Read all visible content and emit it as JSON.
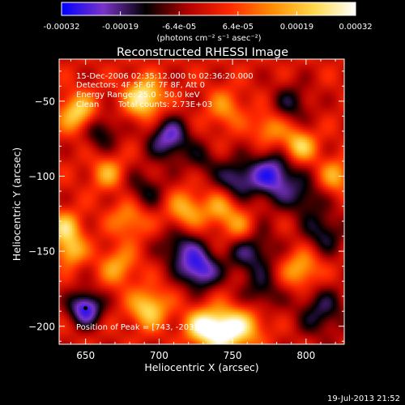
{
  "chart_data": {
    "type": "heatmap",
    "title": "Reconstructed RHESSI Image",
    "xlabel": "Heliocentric X (arcsec)",
    "ylabel": "Heliocentric Y (arcsec)",
    "xlim": [
      632,
      826
    ],
    "ylim": [
      -212,
      -22
    ],
    "x_ticks": [
      {
        "value": 650,
        "label": "650"
      },
      {
        "value": 700,
        "label": "700"
      },
      {
        "value": 750,
        "label": "750"
      },
      {
        "value": 800,
        "label": "800"
      }
    ],
    "y_ticks": [
      {
        "value": -50,
        "label": "−50"
      },
      {
        "value": -100,
        "label": "−100"
      },
      {
        "value": -150,
        "label": "−150"
      },
      {
        "value": -200,
        "label": "−200"
      }
    ],
    "colorbar": {
      "range": [
        -0.00032,
        0.00032
      ],
      "tick_labels": [
        "-0.00032",
        "-0.00019",
        "-6.4e-05",
        "6.4e-05",
        "0.00019",
        "0.00032"
      ],
      "unit_label": "(photons cm⁻² s⁻¹ asec⁻²)",
      "colors": [
        "#0000ff",
        "#7a33c8",
        "#000000",
        "#b00000",
        "#ff2800",
        "#ff8c00",
        "#ffd84a",
        "#ffffff"
      ]
    },
    "annotations": {
      "time_range": "15-Dec-2006 02:35:12.000 to 02:36:20.000",
      "detectors": "Detectors: 4F 5F 6F 7F 8F, Att 0",
      "energy": "Energy Range: 25.0 - 50.0 keV",
      "method": "Clean",
      "counts": "Total counts: 2.73E+03",
      "peak": "Position of Peak = [743, -203]"
    },
    "blobs": [
      {
        "x": 650,
        "y": -188,
        "a": -1.1,
        "s": 8
      },
      {
        "x": 707,
        "y": -75,
        "a": -0.9,
        "s": 10
      },
      {
        "x": 778,
        "y": -100,
        "a": -1.0,
        "s": 12
      },
      {
        "x": 752,
        "y": -102,
        "a": -0.7,
        "s": 9
      },
      {
        "x": 728,
        "y": -163,
        "a": -1.0,
        "s": 9
      },
      {
        "x": 715,
        "y": -148,
        "a": -0.7,
        "s": 10
      },
      {
        "x": 762,
        "y": -150,
        "a": -0.7,
        "s": 12
      },
      {
        "x": 812,
        "y": -138,
        "a": -0.6,
        "s": 10
      },
      {
        "x": 690,
        "y": -110,
        "a": -0.5,
        "s": 10
      },
      {
        "x": 810,
        "y": -190,
        "a": -0.6,
        "s": 12
      },
      {
        "x": 660,
        "y": -70,
        "a": -0.6,
        "s": 9
      },
      {
        "x": 790,
        "y": -52,
        "a": -0.5,
        "s": 10
      },
      {
        "x": 800,
        "y": -115,
        "a": -0.5,
        "s": 9
      },
      {
        "x": 730,
        "y": -90,
        "a": -0.4,
        "s": 8
      },
      {
        "x": 770,
        "y": -178,
        "a": -0.5,
        "s": 9
      },
      {
        "x": 743,
        "y": -203,
        "a": 1.25,
        "s": 10
      },
      {
        "x": 728,
        "y": -200,
        "a": 0.8,
        "s": 8
      },
      {
        "x": 690,
        "y": -48,
        "a": 1.1,
        "s": 9
      },
      {
        "x": 645,
        "y": -58,
        "a": 0.9,
        "s": 9
      },
      {
        "x": 636,
        "y": -135,
        "a": 0.8,
        "s": 8
      },
      {
        "x": 640,
        "y": -150,
        "a": 0.7,
        "s": 7
      },
      {
        "x": 680,
        "y": -128,
        "a": 0.6,
        "s": 9
      },
      {
        "x": 718,
        "y": -123,
        "a": 0.7,
        "s": 9
      },
      {
        "x": 742,
        "y": -122,
        "a": 0.6,
        "s": 8
      },
      {
        "x": 693,
        "y": -188,
        "a": 0.9,
        "s": 9
      },
      {
        "x": 795,
        "y": -80,
        "a": 0.9,
        "s": 8
      },
      {
        "x": 775,
        "y": -68,
        "a": 0.6,
        "s": 8
      },
      {
        "x": 797,
        "y": -162,
        "a": 0.7,
        "s": 9
      },
      {
        "x": 820,
        "y": -100,
        "a": 0.6,
        "s": 8
      },
      {
        "x": 755,
        "y": -135,
        "a": 0.6,
        "s": 8
      },
      {
        "x": 672,
        "y": -160,
        "a": 0.6,
        "s": 9
      },
      {
        "x": 665,
        "y": -98,
        "a": 0.6,
        "s": 8
      },
      {
        "x": 745,
        "y": -55,
        "a": 0.5,
        "s": 9
      },
      {
        "x": 760,
        "y": -200,
        "a": 0.6,
        "s": 9
      }
    ]
  },
  "footer": {
    "timestamp": "19-Jul-2013 21:52"
  }
}
